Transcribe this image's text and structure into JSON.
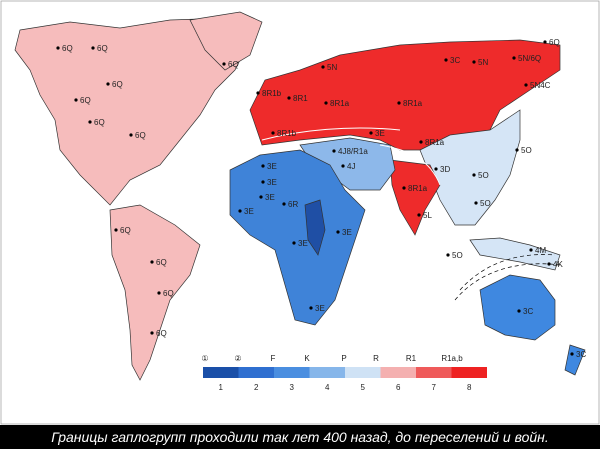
{
  "labels": [
    "6Q",
    "6Q",
    "6Q",
    "6Q",
    "6Q",
    "6Q",
    "6Q",
    "6Q",
    "6Q",
    "6Q",
    "6Q",
    "6Q",
    "8R1b",
    "8R1",
    "5N",
    "3C",
    "5N",
    "5N/6Q",
    "5N4C",
    "8R1a",
    "8R1a",
    "8R1b",
    "3E",
    "8R1a",
    "4J8/R1a",
    "5O",
    "4J",
    "3D",
    "5O",
    "3E",
    "3E",
    "8R1a",
    "3E",
    "5O",
    "6R",
    "3E",
    "5L",
    "3E",
    "3E",
    "5O",
    "4M",
    "4K",
    "3E",
    "3C",
    "3C"
  ],
  "legend": {
    "groups": [
      "①",
      "②",
      "F",
      "K",
      "P",
      "R",
      "R1",
      "R1a,b"
    ],
    "classes": [
      "1",
      "2",
      "3",
      "4",
      "5",
      "6",
      "7",
      "8"
    ]
  },
  "caption": "Границы гаплогрупп проходили так лет 400 назад, до переселений и войн."
}
